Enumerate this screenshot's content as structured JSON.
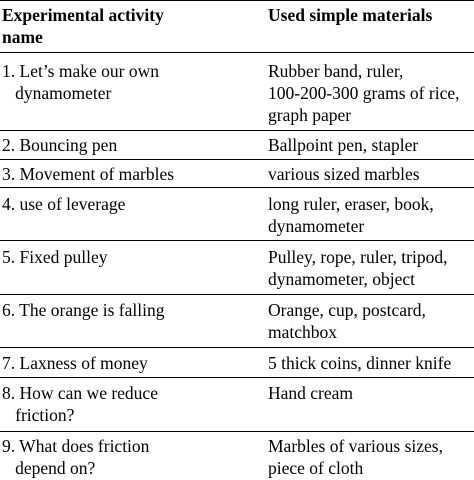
{
  "header": {
    "col1": "Experimental activity\nname",
    "col2": "Used simple materials"
  },
  "rows": [
    {
      "activity": "1. Let’s make our own\n   dynamometer",
      "materials": "Rubber band, ruler,\n100-200-300 grams of rice,\ngraph paper"
    },
    {
      "activity": "2. Bouncing pen",
      "materials": "Ballpoint pen, stapler"
    },
    {
      "activity": "3. Movement of marbles",
      "materials": "various sized marbles"
    },
    {
      "activity": "4. use of leverage",
      "materials": "long ruler, eraser, book,\ndynamometer"
    },
    {
      "activity": "5. Fixed pulley",
      "materials": "Pulley, rope, ruler, tripod,\ndynamometer, object"
    },
    {
      "activity": "6. The orange is falling",
      "materials": "Orange, cup, postcard,\nmatchbox"
    },
    {
      "activity": "7. Laxness of money",
      "materials": "5 thick coins, dinner knife"
    },
    {
      "activity": "8. How can we reduce\n   friction?",
      "materials": "Hand cream"
    },
    {
      "activity": "9. What does friction\n   depend on?",
      "materials": "Marbles of various sizes,\npiece of cloth"
    }
  ]
}
